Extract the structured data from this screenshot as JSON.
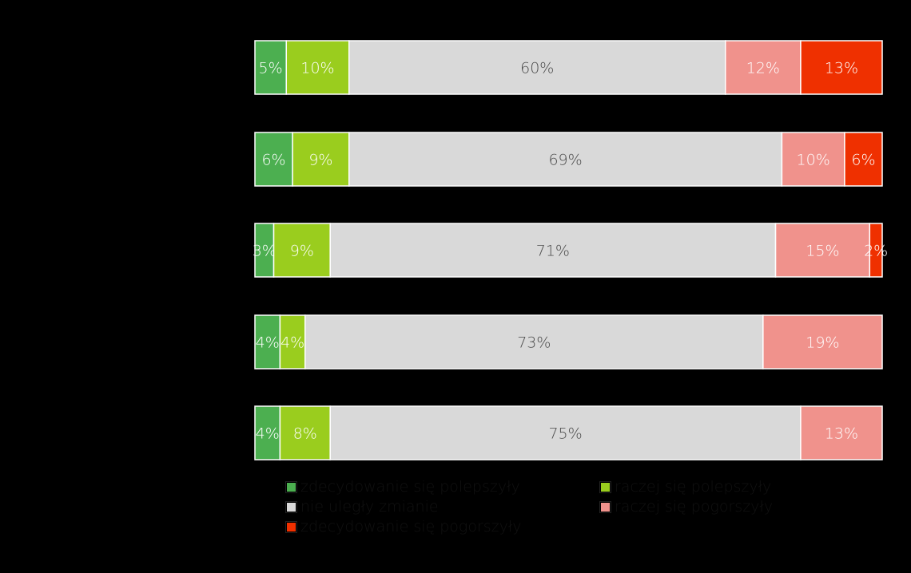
{
  "chart_data": {
    "type": "bar",
    "orientation": "horizontal",
    "stacked": "100%",
    "rows": 5,
    "series": [
      {
        "name": "zdecydowanie się polepszyły",
        "color": "#4caf50",
        "values": [
          5,
          6,
          3,
          4,
          4
        ],
        "labels": [
          "5%",
          "6%",
          "3%",
          "4%",
          "4%"
        ]
      },
      {
        "name": "raczej się polepszyły",
        "color": "#9acd1e",
        "values": [
          10,
          9,
          9,
          4,
          8
        ],
        "labels": [
          "10%",
          "9%",
          "9%",
          "4%",
          "8%"
        ]
      },
      {
        "name": "nie uległy zmianie",
        "color": "#d9d9d9",
        "values": [
          60,
          69,
          71,
          73,
          75
        ],
        "labels": [
          "60%",
          "69%",
          "71%",
          "73%",
          "75%"
        ]
      },
      {
        "name": "raczej się pogorszyły",
        "color": "#f0928c",
        "values": [
          12,
          10,
          15,
          19,
          13
        ],
        "labels": [
          "12%",
          "10%",
          "15%",
          "19%",
          "13%"
        ]
      },
      {
        "name": "zdecydowanie się pogorszyły",
        "color": "#ef3000",
        "values": [
          13,
          6,
          2,
          0,
          0
        ],
        "labels": [
          "13%",
          "6%",
          "2%",
          "",
          ""
        ]
      }
    ],
    "legend_position": "bottom",
    "grid": false
  },
  "legend": {
    "items": [
      {
        "label": "zdecydowanie się polepszyły",
        "color": "#4caf50"
      },
      {
        "label": "raczej się polepszyły",
        "color": "#9acd1e"
      },
      {
        "label": "nie uległy zmianie",
        "color": "#d9d9d9"
      },
      {
        "label": "raczej się pogorszyły",
        "color": "#f0928c"
      },
      {
        "label": "zdecydowanie się pogorszyły",
        "color": "#ef3000"
      }
    ]
  }
}
